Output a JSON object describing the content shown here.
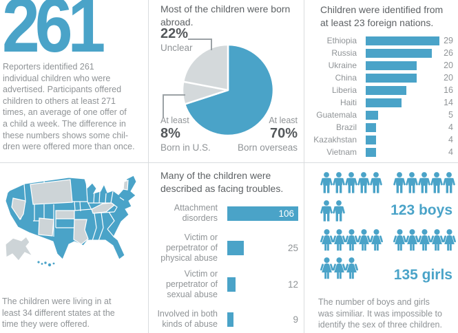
{
  "colors": {
    "accent": "#4aa3c8",
    "light_gray": "#d4d9db",
    "map_gray": "#cdd4d7",
    "title_text": "#5d6164",
    "body_text": "#8f9396",
    "stat_text": "#54585b",
    "divider": "#d9dcde",
    "connector": "#9ba1a5",
    "value_on_bar": "#ffffff"
  },
  "panels": {
    "count": {
      "big_number": "261",
      "description": "Reporters identified 261\nindividual children who were\nadvertised.  Participants offered\nchildren to others at least 271\ntimes, an average of one offer of\na child a week. The difference in\nthese numbers shows some chil-\ndren were offered more than once."
    },
    "origin_pie": {
      "title": "Most of the children were born\nabroad.",
      "label_unclear": {
        "pct": "22%",
        "name": "Unclear"
      },
      "label_us": {
        "prefix": "At least",
        "pct": "8%",
        "name": "Born in U.S."
      },
      "label_overseas": {
        "prefix": "At least",
        "pct": "70%",
        "name": "Born overseas"
      }
    },
    "nations_bar": {
      "title": "Children were identified from\nat least 23 foreign nations."
    },
    "states_map": {
      "description": "The children were living in at\nleast 34 different states at the\ntime they were offered."
    },
    "troubles_bar": {
      "title": "Many of the children were\ndescribed as facing troubles."
    },
    "gender": {
      "boys_label": "123 boys",
      "girls_label": "135 girls",
      "description": "The number of boys and girls\nwas similiar. It was impossible to\nidentify the sex of three children."
    }
  },
  "chart_data": [
    {
      "type": "pie",
      "title": "Most of the children were born abroad.",
      "start_at": "12-oclock",
      "direction": "clockwise",
      "slices": [
        {
          "label": "At least 70% Born overseas",
          "value": 70,
          "color_key": "accent"
        },
        {
          "label": "At least 8% Born in U.S.",
          "value": 8,
          "color_key": "light_gray"
        },
        {
          "label": "22% Unclear",
          "value": 22,
          "color_key": "light_gray"
        }
      ]
    },
    {
      "type": "bar",
      "orientation": "horizontal",
      "title": "Children were identified from at least 23 foreign nations.",
      "categories": [
        "Ethiopia",
        "Russia",
        "Ukraine",
        "China",
        "Liberia",
        "Haiti",
        "Guatemala",
        "Brazil",
        "Kazakhstan",
        "Vietnam"
      ],
      "values": [
        29,
        26,
        20,
        20,
        16,
        14,
        5,
        4,
        4,
        4
      ],
      "xlim": [
        0,
        29
      ],
      "value_labels": "right-of-panel",
      "grid": false
    },
    {
      "type": "bar",
      "orientation": "horizontal",
      "title": "Many of the children were described as facing troubles.",
      "categories": [
        "Attachment\ndisorders",
        "Victim or\nperpetrator of\nphysical abuse",
        "Victim or\nperpetrator of\nsexual abuse",
        "Involved in both\nkinds of abuse"
      ],
      "values": [
        106,
        25,
        12,
        9
      ],
      "value_inside": [
        true,
        false,
        false,
        false
      ],
      "xlim": [
        0,
        106
      ],
      "grid": false
    },
    {
      "type": "pictogram",
      "title": "Boys and girls counts",
      "series": [
        {
          "name": "boys",
          "label": "123 boys",
          "value": 123,
          "icon": "male-icon",
          "icon_rows": [
            [
              5,
              5
            ],
            [
              2
            ]
          ]
        },
        {
          "name": "girls",
          "label": "135 girls",
          "value": 135,
          "icon": "female-icon",
          "icon_rows": [
            [
              5,
              5
            ],
            [
              3
            ]
          ]
        }
      ]
    },
    {
      "type": "map",
      "subject": "United States choropleth",
      "highlighted_states_at_least": 34,
      "highlight_color_key": "accent",
      "unhighlighted_color_key": "map_gray",
      "gray_states_visible": [
        "AK",
        "NV",
        "MT",
        "ND",
        "SD",
        "KS",
        "NM",
        "AR",
        "LA",
        "KY",
        "WV",
        "VT"
      ]
    }
  ]
}
